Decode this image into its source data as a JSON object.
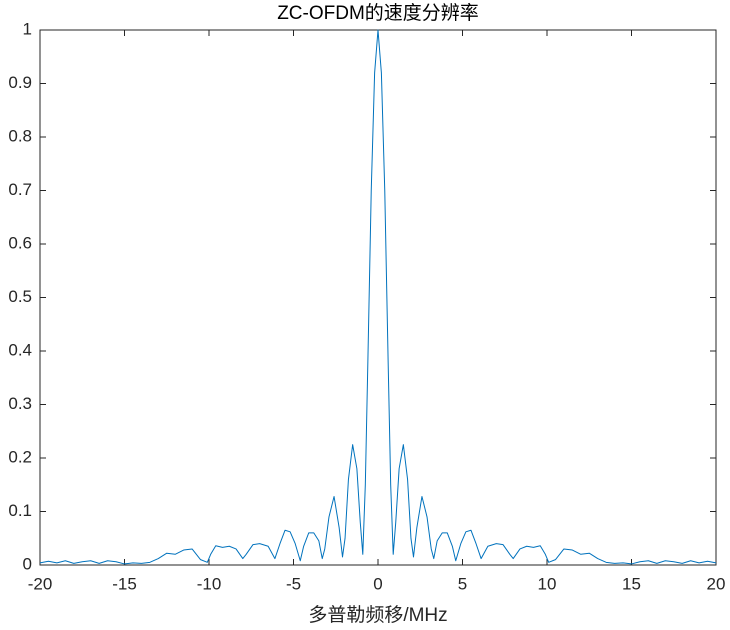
{
  "chart_data": {
    "type": "line",
    "title": "ZC-OFDM的速度分辨率",
    "x_label": "多普勒频移/MHz",
    "series": [
      {
        "color": "#0072bd",
        "x": [
          -20,
          -19.5,
          -19,
          -18.5,
          -18,
          -17.5,
          -17,
          -16.5,
          -16,
          -15.5,
          -15,
          -14.5,
          -14,
          -13.5,
          -13,
          -12.5,
          -12,
          -11.5,
          -11,
          -10.5,
          -10.1,
          -9.9,
          -9.6,
          -9.2,
          -8.8,
          -8.4,
          -8,
          -7.8,
          -7.4,
          -7,
          -6.5,
          -6.1,
          -5.8,
          -5.5,
          -5.2,
          -4.9,
          -4.6,
          -4.4,
          -4.1,
          -3.8,
          -3.5,
          -3.3,
          -3.15,
          -2.9,
          -2.6,
          -2.3,
          -2.1,
          -1.95,
          -1.75,
          -1.5,
          -1.25,
          -1.05,
          -0.9,
          -0.75,
          -0.6,
          -0.4,
          -0.2,
          0,
          0.2,
          0.4,
          0.6,
          0.75,
          0.9,
          1.05,
          1.25,
          1.5,
          1.75,
          1.95,
          2.1,
          2.3,
          2.6,
          2.9,
          3.15,
          3.3,
          3.5,
          3.8,
          4.1,
          4.4,
          4.6,
          4.9,
          5.2,
          5.5,
          5.8,
          6.1,
          6.5,
          7,
          7.4,
          7.8,
          8,
          8.4,
          8.8,
          9.2,
          9.6,
          9.9,
          10.1,
          10.5,
          11,
          11.5,
          12,
          12.5,
          13,
          13.5,
          14,
          14.5,
          15,
          15.5,
          16,
          16.5,
          17,
          17.5,
          18,
          18.5,
          19,
          19.5,
          20
        ],
        "values": [
          0.004,
          0.007,
          0.004,
          0.008,
          0.003,
          0.006,
          0.008,
          0.003,
          0.008,
          0.006,
          0.002,
          0.004,
          0.003,
          0.005,
          0.012,
          0.022,
          0.02,
          0.028,
          0.03,
          0.01,
          0.005,
          0.02,
          0.036,
          0.033,
          0.035,
          0.03,
          0.012,
          0.02,
          0.038,
          0.04,
          0.035,
          0.012,
          0.04,
          0.065,
          0.062,
          0.04,
          0.008,
          0.035,
          0.06,
          0.06,
          0.045,
          0.012,
          0.03,
          0.09,
          0.128,
          0.07,
          0.015,
          0.05,
          0.16,
          0.225,
          0.18,
          0.08,
          0.02,
          0.15,
          0.38,
          0.7,
          0.92,
          1,
          0.92,
          0.7,
          0.38,
          0.15,
          0.02,
          0.08,
          0.18,
          0.225,
          0.16,
          0.05,
          0.015,
          0.07,
          0.128,
          0.09,
          0.03,
          0.012,
          0.045,
          0.06,
          0.06,
          0.035,
          0.008,
          0.04,
          0.062,
          0.065,
          0.04,
          0.012,
          0.035,
          0.04,
          0.038,
          0.02,
          0.012,
          0.03,
          0.035,
          0.033,
          0.036,
          0.02,
          0.005,
          0.01,
          0.03,
          0.028,
          0.02,
          0.022,
          0.012,
          0.005,
          0.003,
          0.004,
          0.002,
          0.006,
          0.008,
          0.003,
          0.008,
          0.006,
          0.003,
          0.008,
          0.004,
          0.007,
          0.004
        ]
      }
    ],
    "xlim": [
      -20,
      20
    ],
    "xticks": [
      -20,
      -15,
      -10,
      -5,
      0,
      5,
      10,
      15,
      20
    ],
    "ylim": [
      0,
      1
    ],
    "yticks": [
      0,
      0.1,
      0.2,
      0.3,
      0.4,
      0.5,
      0.6,
      0.7,
      0.8,
      0.9,
      1
    ],
    "grid": false
  }
}
